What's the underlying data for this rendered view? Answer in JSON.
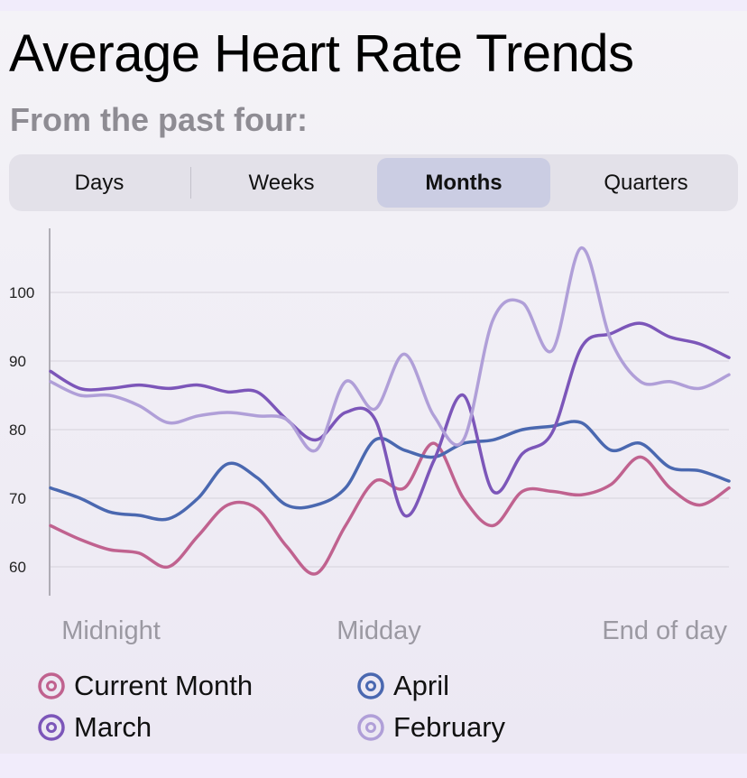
{
  "title": "Average Heart Rate Trends",
  "subtitle": "From the past four:",
  "segments": [
    {
      "label": "Days",
      "active": false
    },
    {
      "label": "Weeks",
      "active": false
    },
    {
      "label": "Months",
      "active": true
    },
    {
      "label": "Quarters",
      "active": false
    }
  ],
  "chart_data": {
    "type": "line",
    "x_labels": [
      "Midnight",
      "Midday",
      "End of day"
    ],
    "y_ticks": [
      60,
      70,
      80,
      90,
      100
    ],
    "ylim": [
      56,
      109
    ],
    "grid": true,
    "legend_position": "bottom",
    "series": [
      {
        "name": "Current Month",
        "color": "#c0628f",
        "values": [
          66,
          64,
          62.5,
          62,
          60,
          64.5,
          69,
          68.5,
          63,
          59,
          66,
          72.5,
          71.5,
          78,
          70,
          66,
          71,
          71,
          70.5,
          72,
          76,
          71.5,
          69,
          71.5
        ]
      },
      {
        "name": "April",
        "color": "#4a68b0",
        "values": [
          71.5,
          70,
          68,
          67.5,
          67,
          70,
          75,
          73,
          69,
          69,
          71.5,
          78.5,
          77,
          76,
          78,
          78.5,
          80,
          80.5,
          81,
          77,
          78,
          74.5,
          74,
          72.5
        ]
      },
      {
        "name": "March",
        "color": "#7c56b9",
        "values": [
          88.5,
          86,
          86,
          86.5,
          86,
          86.5,
          85.5,
          85.5,
          81.5,
          78.5,
          82.5,
          81.5,
          67.5,
          75.5,
          85,
          71,
          76.5,
          79.5,
          92,
          94,
          95.5,
          93.5,
          92.5,
          90.5
        ]
      },
      {
        "name": "February",
        "color": "#b09fd8",
        "values": [
          87,
          85,
          85,
          83.5,
          81,
          82,
          82.5,
          82,
          81.5,
          77,
          87,
          83,
          91,
          82,
          78.5,
          96,
          98.5,
          91.5,
          106.5,
          93,
          87,
          87,
          86,
          88
        ]
      }
    ]
  }
}
